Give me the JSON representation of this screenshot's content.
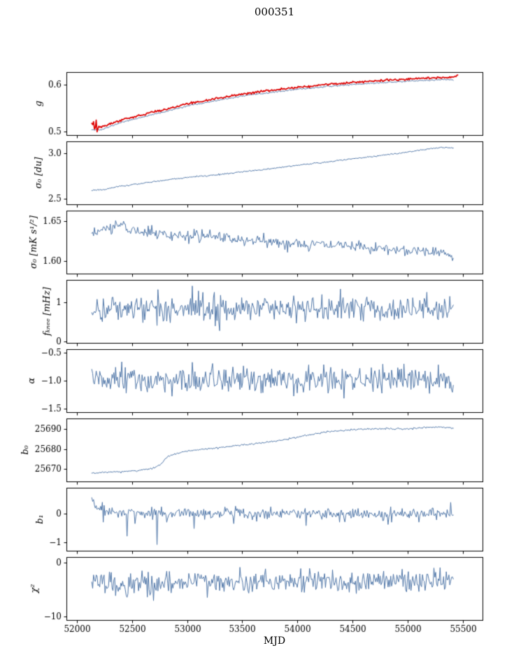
{
  "chart_data": {
    "type": "line",
    "title": "000351",
    "xlabel": "MJD",
    "xlim": [
      51905,
      55680
    ],
    "xticks": [
      52000,
      52500,
      53000,
      53500,
      54000,
      54500,
      55000,
      55500
    ],
    "xticklabels": [
      "52000",
      "52500",
      "53000",
      "53500",
      "54000",
      "54500",
      "55000",
      "55500"
    ],
    "legend": "none",
    "grid": false,
    "accent_blue": "#4f76a8",
    "accent_red": "#dd0000",
    "panels": [
      {
        "id": "g",
        "ylabel": "g",
        "ylim": [
          0.492,
          0.627
        ],
        "yticks": [
          0.5,
          0.6
        ],
        "yticklabels": [
          "0.5",
          "0.6"
        ],
        "series": [
          {
            "name": "gain-smoothed",
            "color": "#4f76a8",
            "lw": 1,
            "seed": 11,
            "noise": 0.0007,
            "step": 8,
            "trend": [
              [
                52135,
                0.504
              ],
              [
                52220,
                0.503
              ],
              [
                52400,
                0.519
              ],
              [
                52600,
                0.531
              ],
              [
                52800,
                0.542
              ],
              [
                53000,
                0.5545
              ],
              [
                53250,
                0.565
              ],
              [
                53500,
                0.5755
              ],
              [
                53750,
                0.583
              ],
              [
                54000,
                0.59
              ],
              [
                54250,
                0.5955
              ],
              [
                54500,
                0.6005
              ],
              [
                54750,
                0.604
              ],
              [
                55000,
                0.6075
              ],
              [
                55200,
                0.6095
              ],
              [
                55420,
                0.611
              ]
            ]
          },
          {
            "name": "gain",
            "color": "#dd0000",
            "lw": 1.7,
            "seed": 12,
            "noise": 0.0011,
            "burst_until": 52200,
            "burst_noise": 0.0065,
            "step": 8,
            "trend": [
              [
                52135,
                0.508
              ],
              [
                52220,
                0.509
              ],
              [
                52400,
                0.524
              ],
              [
                52600,
                0.536
              ],
              [
                52800,
                0.547
              ],
              [
                53000,
                0.559
              ],
              [
                53250,
                0.5695
              ],
              [
                53500,
                0.58
              ],
              [
                53750,
                0.5875
              ],
              [
                54000,
                0.5945
              ],
              [
                54250,
                0.6
              ],
              [
                54500,
                0.605
              ],
              [
                54750,
                0.6085
              ],
              [
                55000,
                0.612
              ],
              [
                55200,
                0.614
              ],
              [
                55380,
                0.6155
              ],
              [
                55460,
                0.619
              ]
            ]
          }
        ]
      },
      {
        "id": "sigma0-du",
        "ylabel": "σ₀ [du]",
        "ylim": [
          2.44,
          3.13
        ],
        "yticks": [
          2.5,
          3.0
        ],
        "yticklabels": [
          "2.5",
          "3.0"
        ],
        "series": [
          {
            "name": "sigma0-du",
            "color": "#4f76a8",
            "lw": 1,
            "seed": 21,
            "noise": 0.004,
            "step": 8,
            "trend": [
              [
                52135,
                2.595
              ],
              [
                52250,
                2.603
              ],
              [
                52400,
                2.638
              ],
              [
                52600,
                2.672
              ],
              [
                52800,
                2.705
              ],
              [
                53000,
                2.735
              ],
              [
                53200,
                2.755
              ],
              [
                53400,
                2.782
              ],
              [
                53600,
                2.808
              ],
              [
                53800,
                2.838
              ],
              [
                54000,
                2.868
              ],
              [
                54200,
                2.895
              ],
              [
                54400,
                2.925
              ],
              [
                54600,
                2.952
              ],
              [
                54800,
                2.982
              ],
              [
                55000,
                3.012
              ],
              [
                55150,
                3.04
              ],
              [
                55300,
                3.062
              ],
              [
                55420,
                3.058
              ]
            ]
          }
        ]
      },
      {
        "id": "sigma0-mks",
        "ylabel": "σ₀ [mK s¹/²]",
        "ylim": [
          1.584,
          1.663
        ],
        "yticks": [
          1.6,
          1.65
        ],
        "yticklabels": [
          "1.60",
          "1.65"
        ],
        "series": [
          {
            "name": "sigma0-mks",
            "color": "#4f76a8",
            "lw": 1,
            "seed": 31,
            "noise": 0.0035,
            "step": 8,
            "trend": [
              [
                52135,
                1.633
              ],
              [
                52250,
                1.64
              ],
              [
                52380,
                1.645
              ],
              [
                52500,
                1.64
              ],
              [
                52700,
                1.634
              ],
              [
                52900,
                1.632
              ],
              [
                53100,
                1.631
              ],
              [
                53300,
                1.63
              ],
              [
                53500,
                1.626
              ],
              [
                53800,
                1.623
              ],
              [
                54100,
                1.621
              ],
              [
                54400,
                1.619
              ],
              [
                54700,
                1.616
              ],
              [
                55000,
                1.614
              ],
              [
                55200,
                1.613
              ],
              [
                55350,
                1.608
              ],
              [
                55420,
                1.606
              ]
            ]
          }
        ]
      },
      {
        "id": "fknee",
        "ylabel": "fₖₙₑₑ [mHz]",
        "ylim": [
          -0.03,
          1.56
        ],
        "yticks": [
          0,
          1
        ],
        "yticklabels": [
          "0",
          "1"
        ],
        "series": [
          {
            "name": "fknee",
            "color": "#4f76a8",
            "lw": 1,
            "seed": 41,
            "noise": 0.17,
            "step": 8,
            "trend": [
              [
                52135,
                0.83
              ],
              [
                53000,
                0.85
              ],
              [
                54000,
                0.84
              ],
              [
                55420,
                0.85
              ]
            ]
          }
        ]
      },
      {
        "id": "alpha",
        "ylabel": "α",
        "ylim": [
          -1.56,
          -0.44
        ],
        "yticks": [
          -1.5,
          -1.0,
          -0.5
        ],
        "yticklabels": [
          "−1.5",
          "−1.0",
          "−0.5"
        ],
        "series": [
          {
            "name": "alpha",
            "color": "#4f76a8",
            "lw": 1,
            "seed": 51,
            "noise": 0.115,
            "step": 8,
            "trend": [
              [
                52135,
                -1.0
              ],
              [
                55420,
                -1.0
              ]
            ]
          }
        ]
      },
      {
        "id": "b0",
        "ylabel": "b₀",
        "ylim": [
          25663.5,
          25695.5
        ],
        "yticks": [
          25670,
          25680,
          25690
        ],
        "yticklabels": [
          "25670",
          "25680",
          "25690"
        ],
        "series": [
          {
            "name": "b0",
            "color": "#4f76a8",
            "lw": 1,
            "seed": 61,
            "noise": 0.22,
            "step": 8,
            "trend": [
              [
                52135,
                25667.8
              ],
              [
                52300,
                25668.2
              ],
              [
                52500,
                25668.8
              ],
              [
                52620,
                25669.5
              ],
              [
                52700,
                25670.5
              ],
              [
                52760,
                25672
              ],
              [
                52800,
                25675
              ],
              [
                52860,
                25677
              ],
              [
                53000,
                25679
              ],
              [
                53150,
                25680
              ],
              [
                53350,
                25681
              ],
              [
                53500,
                25682
              ],
              [
                53700,
                25683.2
              ],
              [
                53900,
                25684.8
              ],
              [
                54000,
                25686
              ],
              [
                54150,
                25687.5
              ],
              [
                54250,
                25688.5
              ],
              [
                54400,
                25689.3
              ],
              [
                54550,
                25690
              ],
              [
                54800,
                25690.3
              ],
              [
                55000,
                25690.2
              ],
              [
                55150,
                25690.8
              ],
              [
                55300,
                25691.3
              ],
              [
                55420,
                25690.7
              ]
            ]
          }
        ]
      },
      {
        "id": "b1",
        "ylabel": "b₁",
        "ylim": [
          -1.28,
          0.88
        ],
        "yticks": [
          -1,
          0
        ],
        "yticklabels": [
          "−1",
          "0"
        ],
        "series": [
          {
            "name": "b1",
            "color": "#4f76a8",
            "lw": 1,
            "seed": 71,
            "noise": 0.1,
            "step": 8,
            "trend": [
              [
                52135,
                0.5
              ],
              [
                52180,
                0.25
              ],
              [
                52280,
                0.06
              ],
              [
                52450,
                0.0
              ],
              [
                55420,
                0.0
              ]
            ],
            "spikes": [
              [
                52240,
                -0.3
              ],
              [
                52455,
                -0.78
              ],
              [
                52530,
                -0.35
              ],
              [
                52725,
                -1.07
              ],
              [
                53060,
                -0.52
              ],
              [
                53420,
                -0.35
              ],
              [
                54080,
                -0.42
              ],
              [
                54380,
                -0.3
              ],
              [
                54820,
                -0.38
              ],
              [
                55100,
                -0.3
              ],
              [
                55390,
                0.38
              ]
            ]
          }
        ]
      },
      {
        "id": "chi2",
        "ylabel": "χ²",
        "ylim": [
          -10.6,
          1.1
        ],
        "yticks": [
          -10,
          0
        ],
        "yticklabels": [
          "−10",
          "0"
        ],
        "series": [
          {
            "name": "chi2",
            "color": "#4f76a8",
            "lw": 1,
            "seed": 81,
            "noise": 1.05,
            "step": 8,
            "trend": [
              [
                52135,
                -3.3
              ],
              [
                52400,
                -4.1
              ],
              [
                52700,
                -3.9
              ],
              [
                53000,
                -3.5
              ],
              [
                53300,
                -3.3
              ],
              [
                53700,
                -3.6
              ],
              [
                54000,
                -3.4
              ],
              [
                54300,
                -3.2
              ],
              [
                54600,
                -3.5
              ],
              [
                55000,
                -3.2
              ],
              [
                55420,
                -3.0
              ]
            ]
          }
        ]
      }
    ]
  }
}
